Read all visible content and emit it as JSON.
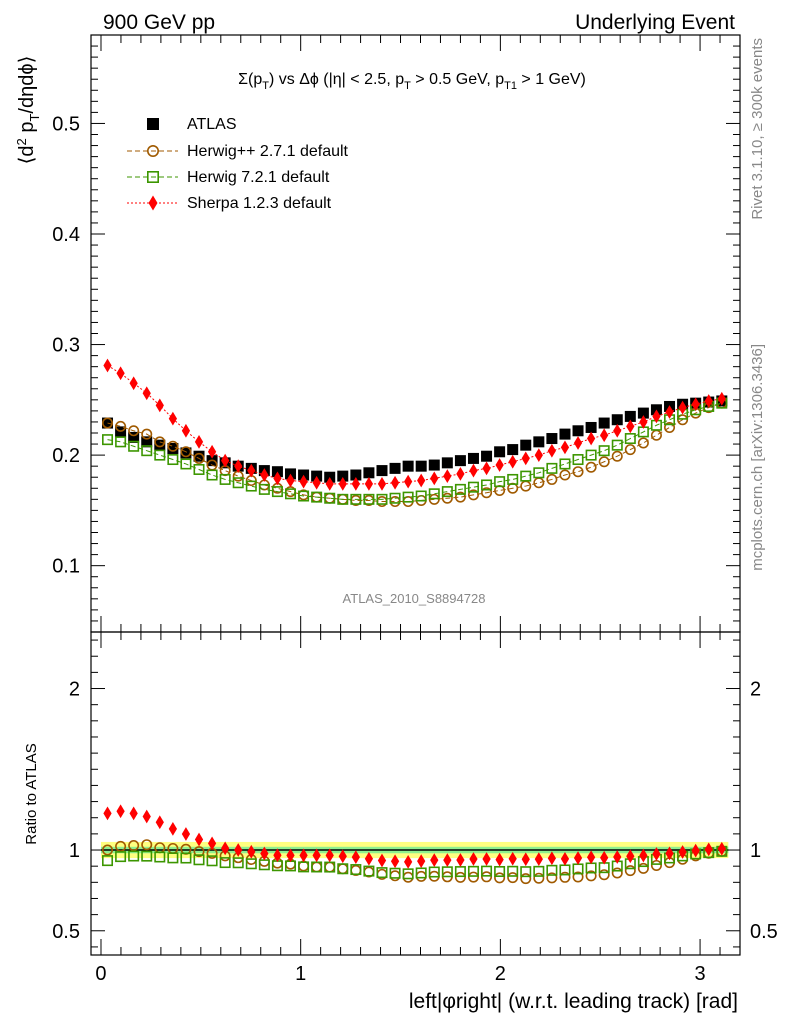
{
  "header": {
    "left": "900 GeV pp",
    "right": "Underlying Event"
  },
  "side": {
    "rivet": "Rivet 3.1.10, ≥ 300k events",
    "mcplots": "mcplots.cern.ch [arXiv:1306.3436]"
  },
  "colors": {
    "atlas": "#000000",
    "herwigpp": "#a05a00",
    "herwig7": "#3c9600",
    "sherpa": "#ff0000",
    "band_inner": "#8ef08e",
    "band_outer": "#ffff80"
  },
  "chart_data": [
    {
      "type": "scatter",
      "title": "Σ(p_T) vs Δφ (|η| < 2.5, p_T > 0.5 GeV, p_T1 > 1 GeV)",
      "analysis_label": "ATLAS_2010_S8894728",
      "xlabel": "left|φright| (w.r.t. leading track) [rad]",
      "ylabel": "⟨d² p_T/dηdφ⟩",
      "xlim": [
        -0.05,
        3.2
      ],
      "ylim": [
        0.04,
        0.58
      ],
      "yticks": [
        "0.1",
        "0.2",
        "0.3",
        "0.4",
        "0.5"
      ],
      "legend_position": "top-left",
      "x": [
        0.0327,
        0.0982,
        0.1636,
        0.2291,
        0.2945,
        0.36,
        0.4254,
        0.4909,
        0.5563,
        0.6218,
        0.6872,
        0.7527,
        0.8181,
        0.8836,
        0.949,
        1.0145,
        1.0799,
        1.1454,
        1.2108,
        1.2763,
        1.3417,
        1.4072,
        1.4726,
        1.5381,
        1.6035,
        1.669,
        1.7344,
        1.7999,
        1.8653,
        1.9308,
        1.9962,
        2.0617,
        2.1271,
        2.1926,
        2.258,
        2.3235,
        2.3889,
        2.4544,
        2.5198,
        2.5853,
        2.6507,
        2.7162,
        2.7816,
        2.8471,
        2.9125,
        2.978,
        3.0434,
        3.1089
      ],
      "series": [
        {
          "name": "ATLAS",
          "marker": "filled-square",
          "values": [
            0.229,
            0.221,
            0.216,
            0.212,
            0.209,
            0.206,
            0.202,
            0.199,
            0.195,
            0.193,
            0.19,
            0.188,
            0.186,
            0.185,
            0.183,
            0.182,
            0.181,
            0.18,
            0.181,
            0.182,
            0.184,
            0.186,
            0.188,
            0.19,
            0.19,
            0.191,
            0.193,
            0.195,
            0.197,
            0.199,
            0.203,
            0.205,
            0.209,
            0.212,
            0.215,
            0.219,
            0.222,
            0.225,
            0.229,
            0.232,
            0.235,
            0.238,
            0.241,
            0.244,
            0.246,
            0.247,
            0.248,
            0.249
          ]
        },
        {
          "name": "Herwig++ 2.7.1 default",
          "marker": "open-circle",
          "values": [
            0.229,
            0.226,
            0.222,
            0.219,
            0.212,
            0.208,
            0.203,
            0.197,
            0.191,
            0.186,
            0.181,
            0.177,
            0.173,
            0.17,
            0.167,
            0.164,
            0.162,
            0.161,
            0.16,
            0.159,
            0.159,
            0.158,
            0.158,
            0.158,
            0.159,
            0.16,
            0.161,
            0.162,
            0.164,
            0.166,
            0.168,
            0.17,
            0.172,
            0.175,
            0.178,
            0.182,
            0.185,
            0.189,
            0.194,
            0.199,
            0.205,
            0.211,
            0.218,
            0.225,
            0.232,
            0.238,
            0.243,
            0.247
          ]
        },
        {
          "name": "Herwig 7.2.1 default",
          "marker": "open-square",
          "values": [
            0.214,
            0.212,
            0.208,
            0.204,
            0.2,
            0.196,
            0.192,
            0.187,
            0.182,
            0.178,
            0.175,
            0.172,
            0.169,
            0.167,
            0.165,
            0.163,
            0.162,
            0.161,
            0.16,
            0.16,
            0.16,
            0.16,
            0.161,
            0.162,
            0.163,
            0.165,
            0.167,
            0.169,
            0.171,
            0.173,
            0.176,
            0.178,
            0.181,
            0.184,
            0.188,
            0.192,
            0.196,
            0.2,
            0.204,
            0.209,
            0.215,
            0.221,
            0.227,
            0.232,
            0.237,
            0.241,
            0.244,
            0.247
          ]
        },
        {
          "name": "Sherpa 1.2.3 default",
          "marker": "filled-diamond",
          "values": [
            0.281,
            0.274,
            0.265,
            0.256,
            0.245,
            0.233,
            0.222,
            0.212,
            0.203,
            0.195,
            0.19,
            0.186,
            0.182,
            0.179,
            0.177,
            0.176,
            0.175,
            0.174,
            0.174,
            0.174,
            0.174,
            0.174,
            0.175,
            0.176,
            0.177,
            0.179,
            0.181,
            0.183,
            0.186,
            0.188,
            0.191,
            0.194,
            0.197,
            0.2,
            0.204,
            0.207,
            0.211,
            0.215,
            0.218,
            0.222,
            0.226,
            0.23,
            0.235,
            0.239,
            0.243,
            0.246,
            0.249,
            0.251
          ]
        }
      ]
    },
    {
      "type": "scatter",
      "ylabel": "Ratio to ATLAS",
      "ylim": [
        0.35,
        2.35
      ],
      "yticks": [
        "0.5",
        "1",
        "2"
      ],
      "xticks": [
        "0",
        "1",
        "2",
        "3"
      ],
      "xlim": [
        -0.05,
        3.2
      ],
      "reference_line": 1,
      "band_outer": [
        0.95,
        1.05
      ],
      "band_inner": [
        0.98,
        1.02
      ]
    }
  ]
}
